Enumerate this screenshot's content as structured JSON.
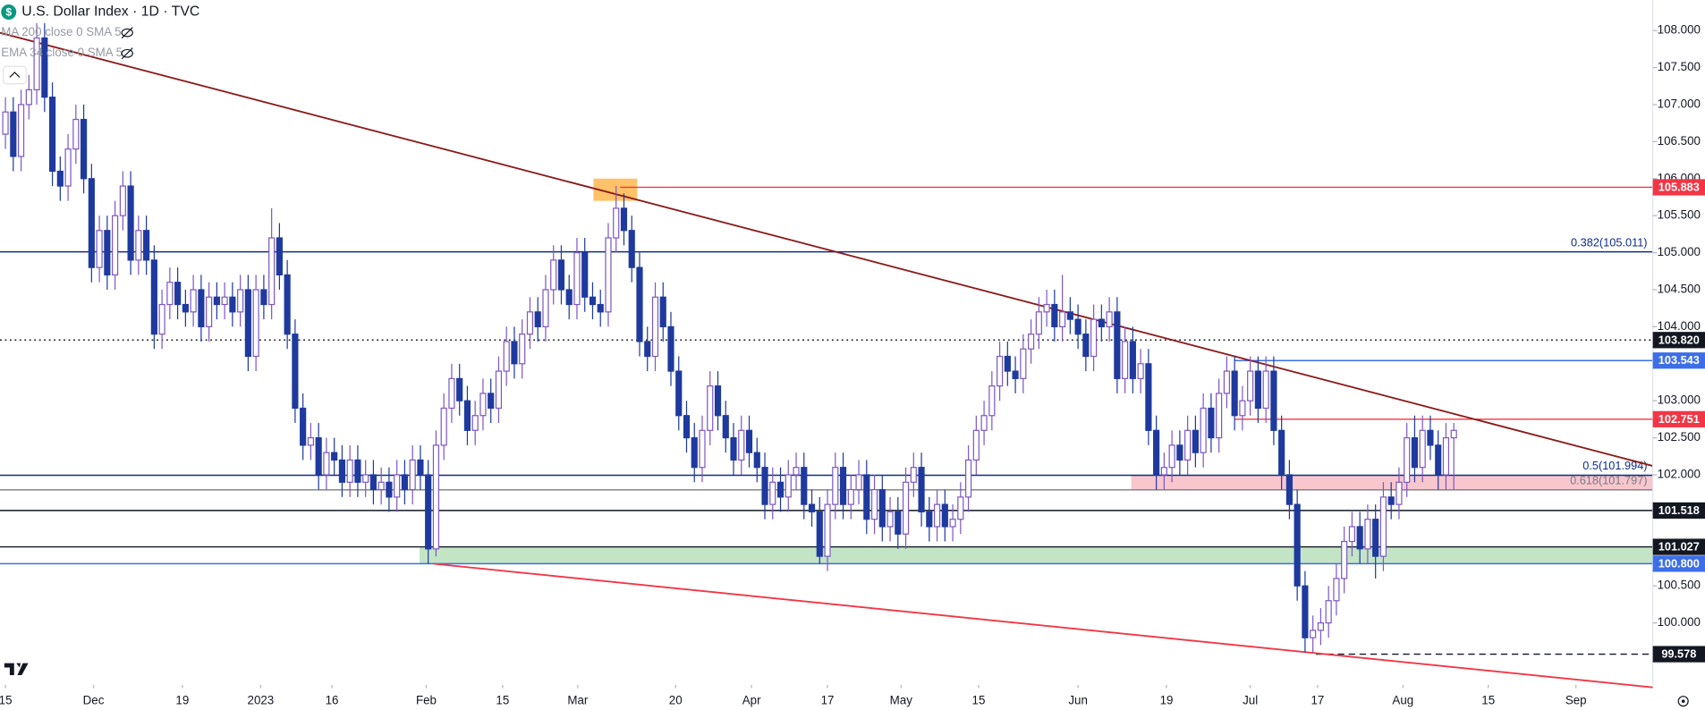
{
  "chart_data": {
    "type": "candlestick",
    "title": "U.S. Dollar Index · 1D · TVC",
    "indicators": [
      "MA 200 close 0 SMA 5",
      "EMA 34 close 0 SMA 5"
    ],
    "up_color": "#ffffff",
    "up_border": "#7e57c2",
    "down_color": "#1e3a9e",
    "open": [
      106.6,
      106.9,
      106.3,
      107.0,
      107.2,
      107.9,
      107.1,
      106.1,
      105.9,
      106.4,
      106.8,
      106.0,
      104.8,
      105.3,
      104.7,
      105.5,
      105.9,
      104.9,
      105.3,
      104.9,
      103.9,
      104.3,
      104.6,
      104.3,
      104.2,
      104.5,
      104.0,
      104.4,
      104.3,
      104.4,
      104.2,
      104.5,
      103.6,
      104.5,
      104.3,
      105.2,
      104.7,
      103.9,
      102.9,
      102.4,
      102.5,
      102.0,
      102.3,
      102.2,
      101.9,
      102.2,
      101.9,
      102.0,
      101.8,
      101.9,
      101.7,
      102.0,
      101.8,
      102.2,
      102.0,
      101.0,
      102.4,
      102.9,
      103.3,
      103.0,
      102.6,
      102.8,
      103.1,
      102.9,
      103.4,
      103.8,
      103.5,
      103.9,
      104.2,
      104.0,
      104.5,
      104.9,
      104.5,
      104.3,
      105.0,
      104.4,
      104.3,
      104.2,
      105.2,
      105.6,
      105.3,
      104.8,
      103.8,
      103.6,
      104.4,
      104.0,
      103.4,
      102.8,
      102.5,
      102.1,
      102.6,
      103.2,
      102.8,
      102.5,
      102.2,
      102.6,
      102.3,
      102.1,
      101.6,
      101.9,
      101.7,
      102.0,
      102.1,
      101.6,
      101.5,
      100.9,
      101.6,
      102.1,
      101.6,
      101.8,
      102.0,
      101.4,
      101.8,
      101.3,
      101.5,
      101.2,
      101.9,
      102.1,
      101.5,
      101.3,
      101.6,
      101.3,
      101.4,
      101.7,
      102.2,
      102.6,
      102.8,
      103.2,
      103.6,
      103.4,
      103.3,
      103.7,
      103.9,
      104.2,
      104.3,
      104.0,
      104.2,
      104.1,
      103.9,
      103.6,
      104.1,
      104.0,
      104.2,
      103.3,
      103.8,
      103.3,
      103.5,
      102.6,
      102.0,
      102.1,
      102.4,
      102.2,
      102.6,
      102.3,
      102.9,
      102.5,
      103.1,
      103.4,
      102.8,
      103.0,
      103.4,
      102.9,
      103.4,
      102.6,
      102.0,
      101.6,
      100.5,
      99.8,
      99.9,
      100.0,
      100.3,
      100.6,
      101.1,
      101.3,
      101.0,
      101.4,
      100.9,
      101.7,
      101.6,
      101.9,
      102.5,
      102.1,
      102.6,
      102.4,
      102.0,
      102.5
    ],
    "high": [
      107.1,
      107.1,
      107.2,
      107.4,
      108.1,
      108.1,
      107.3,
      106.3,
      106.6,
      107.0,
      107.0,
      106.2,
      105.5,
      105.5,
      105.7,
      106.1,
      106.1,
      105.5,
      105.5,
      105.1,
      104.5,
      104.8,
      104.8,
      104.5,
      104.7,
      104.7,
      104.6,
      104.6,
      104.6,
      104.6,
      104.7,
      104.7,
      104.7,
      104.7,
      105.6,
      105.4,
      104.9,
      104.1,
      103.1,
      102.7,
      102.7,
      102.5,
      102.5,
      102.4,
      102.4,
      102.4,
      102.2,
      102.2,
      102.1,
      102.1,
      102.2,
      102.2,
      102.4,
      102.4,
      102.2,
      102.6,
      103.1,
      103.5,
      103.5,
      103.2,
      103.0,
      103.3,
      103.3,
      103.6,
      104.0,
      104.0,
      104.1,
      104.4,
      104.4,
      104.7,
      105.1,
      105.1,
      104.7,
      105.2,
      105.2,
      104.6,
      104.5,
      105.4,
      105.9,
      105.8,
      105.5,
      105.0,
      104.0,
      104.6,
      104.6,
      104.2,
      103.6,
      103.0,
      102.7,
      102.8,
      103.4,
      103.4,
      103.0,
      102.7,
      102.8,
      102.8,
      102.5,
      102.3,
      102.1,
      102.1,
      102.2,
      102.3,
      102.3,
      101.8,
      101.7,
      101.8,
      102.3,
      102.3,
      102.0,
      102.2,
      102.2,
      102.0,
      102.0,
      101.7,
      101.7,
      102.1,
      102.3,
      102.3,
      101.7,
      101.8,
      101.8,
      101.6,
      101.9,
      102.4,
      102.8,
      103.0,
      103.4,
      103.8,
      103.8,
      103.6,
      103.9,
      104.1,
      104.4,
      104.5,
      104.5,
      104.7,
      104.4,
      104.3,
      104.1,
      104.3,
      104.3,
      104.4,
      104.4,
      104.0,
      104.0,
      103.7,
      103.7,
      102.8,
      102.3,
      102.6,
      102.6,
      102.8,
      102.8,
      103.1,
      103.1,
      103.3,
      103.6,
      103.6,
      103.2,
      103.6,
      103.6,
      103.6,
      103.6,
      102.8,
      102.2,
      101.8,
      100.7,
      100.1,
      100.2,
      100.5,
      100.8,
      101.3,
      101.5,
      101.5,
      101.6,
      101.6,
      101.9,
      101.9,
      102.1,
      102.7,
      102.8,
      102.8,
      102.8,
      102.6,
      102.7,
      102.7
    ],
    "low": [
      106.4,
      106.1,
      106.1,
      106.8,
      107.0,
      106.9,
      105.9,
      105.7,
      105.7,
      106.2,
      105.8,
      104.6,
      104.6,
      104.5,
      104.5,
      105.3,
      104.7,
      104.7,
      104.7,
      103.7,
      103.7,
      104.1,
      104.1,
      104.0,
      104.0,
      103.8,
      103.8,
      104.1,
      104.1,
      104.0,
      104.0,
      103.4,
      103.4,
      104.1,
      104.1,
      104.5,
      103.7,
      102.7,
      102.2,
      102.2,
      101.8,
      101.8,
      102.0,
      101.7,
      101.7,
      101.7,
      101.7,
      101.6,
      101.6,
      101.5,
      101.5,
      101.6,
      101.6,
      101.8,
      100.8,
      100.9,
      102.2,
      102.7,
      102.8,
      102.4,
      102.4,
      102.6,
      102.7,
      102.7,
      103.2,
      103.3,
      103.3,
      103.7,
      103.8,
      103.8,
      104.3,
      104.3,
      104.1,
      104.1,
      104.2,
      104.1,
      104.0,
      104.0,
      105.0,
      105.1,
      104.6,
      103.6,
      103.4,
      103.4,
      103.8,
      103.2,
      102.6,
      102.3,
      101.9,
      101.9,
      102.4,
      102.6,
      102.3,
      102.0,
      102.0,
      102.1,
      101.9,
      101.4,
      101.4,
      101.5,
      101.5,
      101.8,
      101.4,
      101.3,
      100.8,
      100.7,
      101.4,
      101.4,
      101.4,
      101.6,
      101.2,
      101.2,
      101.1,
      101.1,
      101.0,
      101.0,
      101.7,
      101.3,
      101.1,
      101.1,
      101.1,
      101.1,
      101.2,
      101.5,
      102.0,
      102.4,
      102.6,
      103.0,
      103.2,
      103.1,
      103.1,
      103.5,
      103.7,
      104.0,
      103.8,
      103.8,
      103.9,
      103.7,
      103.4,
      103.4,
      103.8,
      103.8,
      103.1,
      103.1,
      103.1,
      103.1,
      102.4,
      101.8,
      101.8,
      101.9,
      102.0,
      102.0,
      102.1,
      102.1,
      102.3,
      102.3,
      102.9,
      102.6,
      102.6,
      102.8,
      102.7,
      102.7,
      102.4,
      101.8,
      101.4,
      100.3,
      99.6,
      99.6,
      99.7,
      99.8,
      100.1,
      100.4,
      100.9,
      100.8,
      100.8,
      100.6,
      100.7,
      101.4,
      101.4,
      101.7,
      101.9,
      101.9,
      102.2,
      101.8,
      101.8,
      101.8
    ],
    "close": [
      106.9,
      106.3,
      107.0,
      107.2,
      107.9,
      107.1,
      106.1,
      105.9,
      106.4,
      106.8,
      106.0,
      104.8,
      105.3,
      104.7,
      105.5,
      105.9,
      104.9,
      105.3,
      104.9,
      103.9,
      104.3,
      104.6,
      104.3,
      104.2,
      104.5,
      104.0,
      104.4,
      104.3,
      104.4,
      104.2,
      104.5,
      103.6,
      104.5,
      104.3,
      105.2,
      104.7,
      103.9,
      102.9,
      102.4,
      102.5,
      102.0,
      102.3,
      102.2,
      101.9,
      102.2,
      101.9,
      102.0,
      101.8,
      101.9,
      101.7,
      102.0,
      101.8,
      102.2,
      102.0,
      101.0,
      102.4,
      102.9,
      103.3,
      103.0,
      102.6,
      102.8,
      103.1,
      102.9,
      103.4,
      103.8,
      103.5,
      103.9,
      104.2,
      104.0,
      104.5,
      104.9,
      104.5,
      104.3,
      105.0,
      104.4,
      104.3,
      104.2,
      105.2,
      105.6,
      105.3,
      104.8,
      103.8,
      103.6,
      104.4,
      104.0,
      103.4,
      102.8,
      102.5,
      102.1,
      102.6,
      103.2,
      102.8,
      102.5,
      102.2,
      102.6,
      102.3,
      102.1,
      101.6,
      101.9,
      101.7,
      102.0,
      102.1,
      101.6,
      101.5,
      100.9,
      101.6,
      102.1,
      101.6,
      101.8,
      102.0,
      101.4,
      101.8,
      101.3,
      101.5,
      101.2,
      101.9,
      102.1,
      101.5,
      101.3,
      101.6,
      101.3,
      101.4,
      101.7,
      102.2,
      102.6,
      102.8,
      103.2,
      103.6,
      103.4,
      103.3,
      103.7,
      103.9,
      104.2,
      104.3,
      104.0,
      104.2,
      104.1,
      103.9,
      103.6,
      104.1,
      104.0,
      104.2,
      103.3,
      103.8,
      103.3,
      103.5,
      102.6,
      102.0,
      102.1,
      102.4,
      102.2,
      102.6,
      102.3,
      102.9,
      102.5,
      103.1,
      103.4,
      102.8,
      103.0,
      103.4,
      102.9,
      103.4,
      102.6,
      102.0,
      101.6,
      100.5,
      99.8,
      99.9,
      100.0,
      100.3,
      100.6,
      101.1,
      101.3,
      101.0,
      101.4,
      100.9,
      101.7,
      101.6,
      101.9,
      102.5,
      102.1,
      102.6,
      102.4,
      102.0,
      102.5,
      102.6
    ],
    "xlim": [
      -0.694,
      210.417
    ],
    "ylim": [
      99.163,
      108.411
    ],
    "xticks": [
      {
        "value": 0,
        "label": "15"
      },
      {
        "value": 11.25,
        "label": "Dec"
      },
      {
        "value": 22.6,
        "label": "19"
      },
      {
        "value": 32.6,
        "label": "2023"
      },
      {
        "value": 41.7,
        "label": "16"
      },
      {
        "value": 53.75,
        "label": "Feb"
      },
      {
        "value": 63.5,
        "label": "15"
      },
      {
        "value": 73.1,
        "label": "Mar"
      },
      {
        "value": 85.6,
        "label": "20"
      },
      {
        "value": 95.3,
        "label": "Apr"
      },
      {
        "value": 105,
        "label": "17"
      },
      {
        "value": 114.4,
        "label": "May"
      },
      {
        "value": 124.3,
        "label": "15"
      },
      {
        "value": 137,
        "label": "Jun"
      },
      {
        "value": 148.3,
        "label": "19"
      },
      {
        "value": 159,
        "label": "Jul"
      },
      {
        "value": 167.6,
        "label": "17"
      },
      {
        "value": 178.5,
        "label": "Aug"
      },
      {
        "value": 189.4,
        "label": "15"
      },
      {
        "value": 200.6,
        "label": "Sep"
      }
    ],
    "yticks": [
      {
        "value": 100,
        "label": "100.000"
      },
      {
        "value": 100.5,
        "label": "100.500"
      },
      {
        "value": 102,
        "label": "102.000"
      },
      {
        "value": 102.5,
        "label": "102.500"
      },
      {
        "value": 103,
        "label": "103.000"
      },
      {
        "value": 104,
        "label": "104.000"
      },
      {
        "value": 104.5,
        "label": "104.500"
      },
      {
        "value": 105,
        "label": "105.000"
      },
      {
        "value": 105.5,
        "label": "105.500"
      },
      {
        "value": 106,
        "label": "106.000"
      },
      {
        "value": 106.5,
        "label": "106.500"
      },
      {
        "value": 107,
        "label": "107.000"
      },
      {
        "value": 107.5,
        "label": "107.500"
      },
      {
        "value": 108,
        "label": "108.000"
      }
    ],
    "grid": false,
    "zones": [
      {
        "from": 101.797,
        "to": 101.994,
        "start": 143.8,
        "color": "#f7bcc4"
      },
      {
        "from": 100.8,
        "to": 101.027,
        "start": 52.9,
        "color": "#b9e0bb"
      },
      {
        "from": 105.7,
        "to": 106.0,
        "start": 75.1,
        "end": 80.7,
        "color": "#ffb74d"
      }
    ],
    "levels": [
      {
        "value": 105.883,
        "label": "105.883",
        "color": "#f23645",
        "style": "solid",
        "start": 78.5,
        "place": "axis"
      },
      {
        "value": 105.011,
        "label": "0.382(105.011)",
        "color": "#0d2b8c",
        "style": "solid",
        "place": "line"
      },
      {
        "value": 103.82,
        "label": "103.820",
        "color": "#131722",
        "style": "dotted",
        "place": "axis"
      },
      {
        "value": 103.543,
        "label": "103.543",
        "color": "#3d6ee8",
        "style": "solid",
        "start": 157,
        "place": "axis"
      },
      {
        "value": 102.751,
        "label": "102.751",
        "color": "#f23645",
        "style": "solid",
        "start": 157,
        "place": "axis"
      },
      {
        "value": 101.994,
        "label": "0.5(101.994)",
        "color": "#0d2b8c",
        "style": "solid",
        "place": "line"
      },
      {
        "value": 101.797,
        "label": "0.618(101.797)",
        "color": "#787b86",
        "style": "solid",
        "place": "line"
      },
      {
        "value": 101.518,
        "label": "101.518",
        "color": "#131722",
        "style": "solid",
        "place": "axis"
      },
      {
        "value": 101.027,
        "label": "101.027",
        "color": "#131722",
        "style": "solid",
        "place": "axis"
      },
      {
        "value": 100.8,
        "label": "100.800",
        "color": "#3d6ee8",
        "style": "solid",
        "place": "axis"
      },
      {
        "value": 99.578,
        "label": "99.578",
        "color": "#131722",
        "style": "dashed",
        "start": 167.4,
        "place": "axis"
      }
    ],
    "trendlines": [
      {
        "points": [
          [
            -0.694,
            107.97
          ],
          [
            210.417,
            102.12
          ]
        ],
        "color": "#8b1a1a"
      },
      {
        "points": [
          [
            54.6,
            100.8
          ],
          [
            210.417,
            99.13
          ]
        ],
        "color": "#f23645"
      }
    ]
  }
}
